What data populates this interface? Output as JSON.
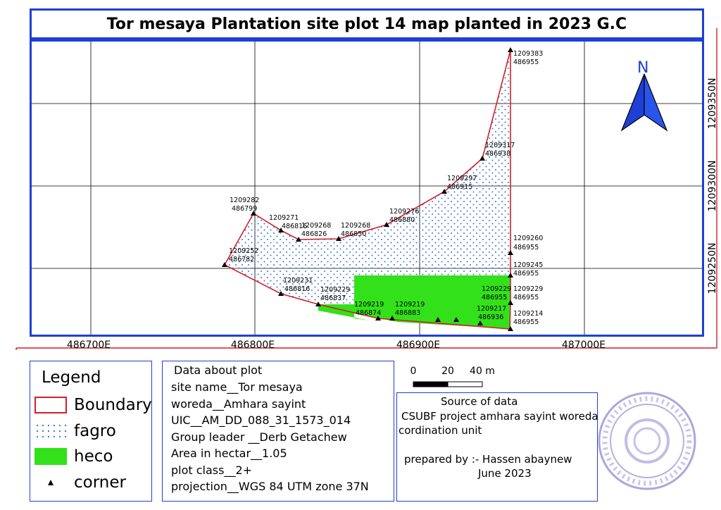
{
  "title": "Tor mesaya Plantation site plot 14 map planted in 2023 G.C",
  "map": {
    "x_ticks": [
      "486700E",
      "486800E",
      "486900E",
      "487000E"
    ],
    "y_ticks": [
      "1209350N",
      "1209300N",
      "1209250N"
    ],
    "north_label": "N",
    "corners": [
      {
        "northing": "1209383",
        "easting": "486955"
      },
      {
        "northing": "1209317",
        "easting": "486938"
      },
      {
        "northing": "1209297",
        "easting": "486915"
      },
      {
        "northing": "1209276",
        "easting": "486880"
      },
      {
        "northing": "1209268",
        "easting": "486850"
      },
      {
        "northing": "1209268",
        "easting": "486826"
      },
      {
        "northing": "1209271",
        "easting": "486816"
      },
      {
        "northing": "1209282",
        "easting": "486799"
      },
      {
        "northing": "1209252",
        "easting": "486782"
      },
      {
        "northing": "1209231",
        "easting": "486816"
      },
      {
        "northing": "1209229",
        "easting": "486837"
      },
      {
        "northing": "1209219",
        "easting": "486874"
      },
      {
        "northing": "1209219",
        "easting": "486883"
      },
      {
        "northing": "1209217",
        "easting": "486936"
      },
      {
        "northing": "1209214",
        "easting": "486955"
      },
      {
        "northing": "1209229",
        "easting": "486955"
      },
      {
        "northing": "1209229",
        "easting": "486955"
      },
      {
        "northing": "1209245",
        "easting": "486955"
      },
      {
        "northing": "1209260",
        "easting": "486955"
      }
    ]
  },
  "scale_bar": {
    "labels": [
      "0",
      "20",
      "40 m"
    ]
  },
  "legend": {
    "title": "Legend",
    "items": [
      {
        "label": "Boundary",
        "color": "#d0202a"
      },
      {
        "label": "fagro",
        "color": "#3a78c9"
      },
      {
        "label": "heco",
        "color": "#33e11a"
      },
      {
        "label": "corner",
        "color": "#000000"
      }
    ]
  },
  "plot_info": {
    "heading": "Data about plot",
    "site_name": "site name__Tor mesaya",
    "woreda": "woreda__Amhara sayint",
    "uic": "UIC__AM_DD_088_31_1573_014",
    "group_leader": "Group leader __Derb Getachew",
    "area": "Area in hectar__1.05",
    "plot_class": "plot class__2+",
    "projection": "projection__WGS 84 UTM zone 37N"
  },
  "source": {
    "heading": "Source of data",
    "line1": "CSUBF project amhara sayint woreda",
    "line2": "cordination unit",
    "prepared_by": "prepared by :- Hassen abaynew",
    "date": "June 2023"
  }
}
